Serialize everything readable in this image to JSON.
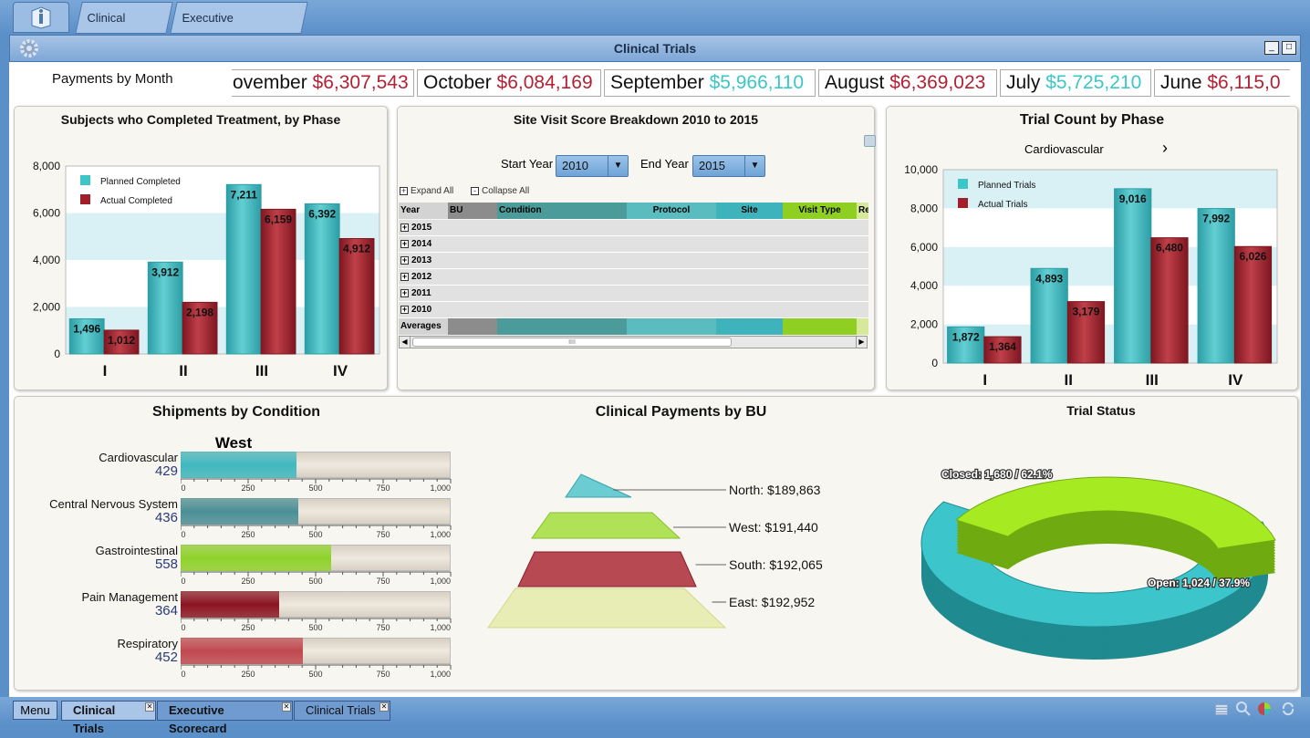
{
  "top_tabs": [
    {
      "label": "Clinical Trials"
    },
    {
      "label": "Executive Scorecard"
    }
  ],
  "window": {
    "title": "Clinical Trials",
    "min": "_",
    "max": "□"
  },
  "ticker": {
    "label": "Payments by Month",
    "items": [
      {
        "month": "ovember",
        "value": "$6,307,543",
        "color": "#b22234"
      },
      {
        "month": "October",
        "value": "$6,084,169",
        "color": "#b22234"
      },
      {
        "month": "September",
        "value": "$5,966,110",
        "color": "#3cc6c8"
      },
      {
        "month": "August",
        "value": "$6,369,023",
        "color": "#b22234"
      },
      {
        "month": "July",
        "value": "$5,725,210",
        "color": "#3cc6c8"
      },
      {
        "month": "June",
        "value": "$6,115,0",
        "color": "#b22234"
      }
    ]
  },
  "subjects": {
    "title": "Subjects who Completed Treatment, by Phase"
  },
  "site": {
    "title": "Site Visit Score Breakdown 2010 to 2015",
    "start_label": "Start Year",
    "start_value": "2010",
    "end_label": "End Year",
    "end_value": "2015",
    "expand": "Expand All",
    "collapse": "Collapse All",
    "columns": [
      "Year",
      "BU",
      "Condition",
      "Protocol",
      "Site",
      "Visit Type",
      "Re"
    ],
    "years": [
      "2015",
      "2014",
      "2013",
      "2012",
      "2011",
      "2010"
    ],
    "averages": "Averages",
    "scroll_label": "IIII"
  },
  "trialcount": {
    "title": "Trial Count by Phase",
    "selector": "Cardiovascular",
    "arrow": "›"
  },
  "shipments": {
    "title": "Shipments by Condition",
    "region": "West"
  },
  "payments": {
    "title": "Clinical Payments by BU"
  },
  "status": {
    "title": "Trial Status"
  },
  "bottom": {
    "menu": "Menu",
    "tabs": [
      "Clinical Trials",
      "Executive Scorecard",
      "Clinical Trials"
    ]
  },
  "colors": {
    "teal": "#3fb8bf",
    "red": "#a31e2b",
    "green": "#9ad82a"
  },
  "chart_data": [
    {
      "type": "bar",
      "title": "Subjects who Completed Treatment, by Phase",
      "categories": [
        "I",
        "II",
        "III",
        "IV"
      ],
      "series": [
        {
          "name": "Planned Completed",
          "values": [
            1496,
            3912,
            7211,
            6392
          ]
        },
        {
          "name": "Actual Completed",
          "values": [
            1012,
            2198,
            6159,
            4912
          ]
        }
      ],
      "yticks": [
        "0",
        "2,000",
        "4,000",
        "6,000",
        "8,000"
      ],
      "ylim": [
        0,
        8000
      ],
      "legend": "top-left"
    },
    {
      "type": "bar",
      "title": "Trial Count by Phase",
      "categories": [
        "I",
        "II",
        "III",
        "IV"
      ],
      "series": [
        {
          "name": "Planned Trials",
          "values": [
            1872,
            4893,
            9016,
            7992
          ]
        },
        {
          "name": "Actual Trials",
          "values": [
            1364,
            3179,
            6480,
            6026
          ]
        }
      ],
      "yticks": [
        "0",
        "2,000",
        "4,000",
        "6,000",
        "8,000",
        "10,000"
      ],
      "ylim": [
        0,
        10000
      ],
      "legend": "top-left"
    },
    {
      "type": "bar",
      "title": "Shipments by Condition",
      "orientation": "horizontal",
      "categories": [
        "Cardiovascular",
        "Central Nervous System",
        "Gastrointestinal",
        "Pain Management",
        "Respiratory"
      ],
      "values": [
        429,
        436,
        558,
        364,
        452
      ],
      "value_labels": [
        "429",
        "436",
        "558",
        "364",
        "452"
      ],
      "colors": [
        "#3fb8bf",
        "#4a8f96",
        "#8fd22a",
        "#8a1420",
        "#c0474f"
      ],
      "xticks": [
        "0",
        "250",
        "500",
        "750",
        "1,000"
      ],
      "xlim": [
        0,
        1000
      ]
    },
    {
      "type": "pie",
      "title": "Clinical Payments by BU",
      "subtype": "pyramid",
      "labels": [
        "North: $189,863",
        "West: $191,440",
        "South: $192,065",
        "East: $192,952"
      ],
      "values": [
        189863,
        191440,
        192065,
        192952
      ]
    },
    {
      "type": "pie",
      "title": "Trial Status",
      "subtype": "donut",
      "labels": [
        "Closed: 1,680 / 62.1%",
        "Open: 1,024 / 37.9%"
      ],
      "values": [
        1680,
        1024
      ]
    }
  ]
}
